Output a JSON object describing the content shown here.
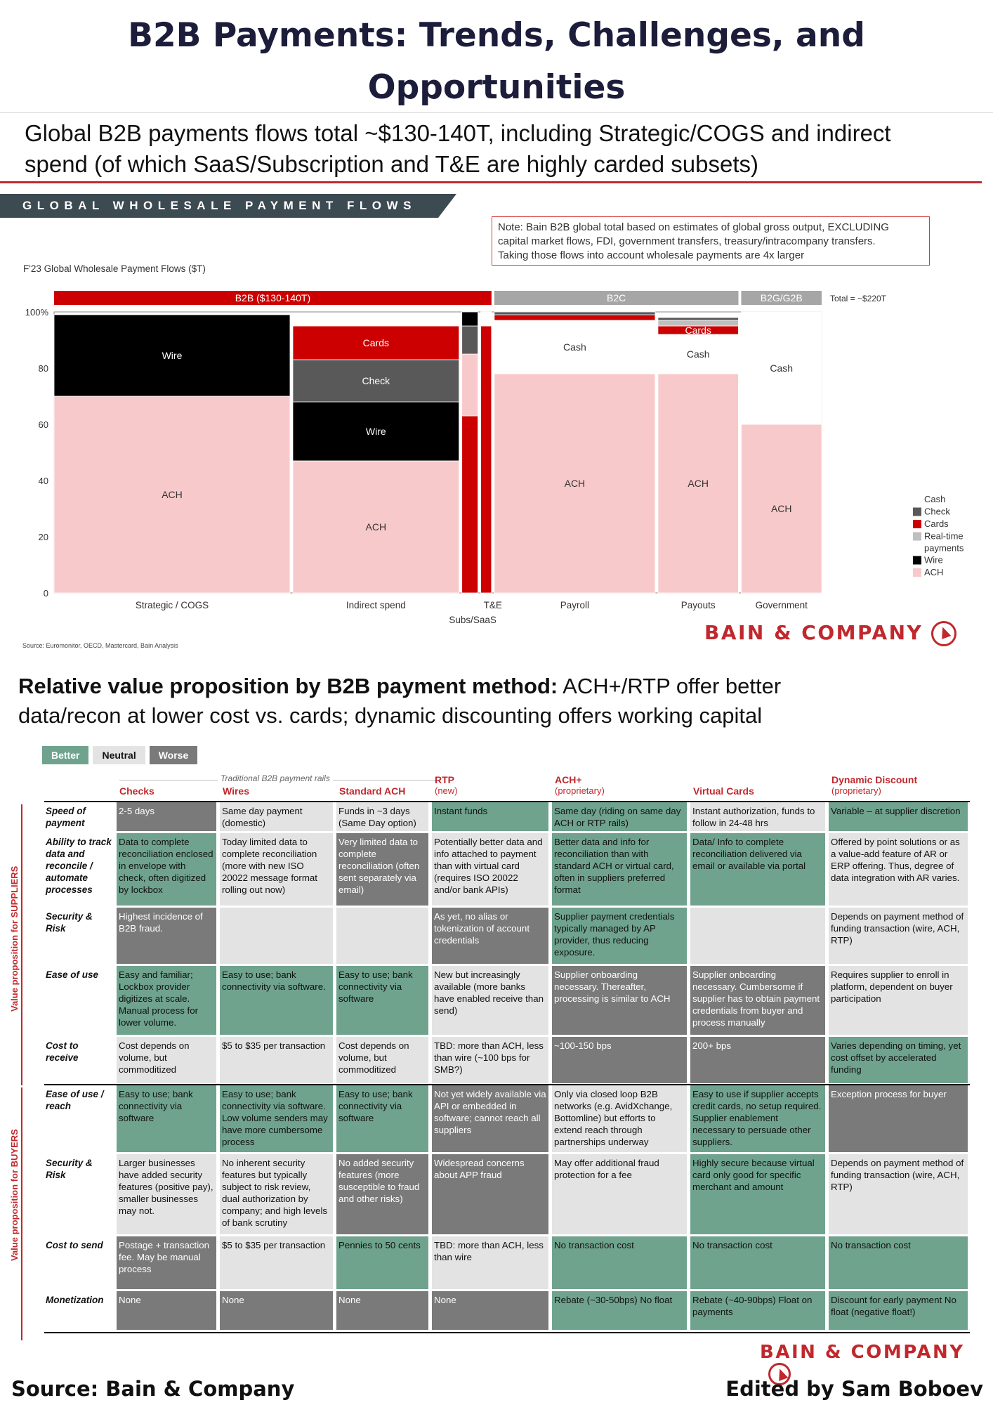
{
  "page": {
    "title_line1": "B2B Payments: Trends, Challenges, and",
    "title_line2": "Opportunities",
    "source": "Source: Bain & Company",
    "editor": "Edited by Sam Boboev",
    "brand": "BAIN & COMPANY"
  },
  "section1": {
    "headline_line1": "Global B2B payments flows total ~$130-140T, including Strategic/COGS and indirect",
    "headline_line2": "spend (of which SaaS/Subscription and T&E are highly carded subsets)",
    "banner": "GLOBAL WHOLESALE PAYMENT FLOWS",
    "note_line1": "Note: Bain B2B global total based on estimates of global gross output, EXCLUDING",
    "note_line2": "capital market flows, FDI, government transfers, treasury/intracompany transfers.",
    "note_line3": "Taking those flows into account wholesale payments are 4x larger",
    "y_label": "F'23 Global Wholesale Payment Flows ($T)",
    "source_small": "Source: Euromonitor, OECD, Mastercard, Bain Analysis"
  },
  "chart_data": {
    "type": "mekko",
    "ylabel": "F'23 Global Wholesale Payment Flows ($T)",
    "yticks": [
      "0",
      "20",
      "40",
      "60",
      "80",
      "100%"
    ],
    "ylim": [
      0,
      100
    ],
    "groups": [
      {
        "name": "B2B ($130-140T)",
        "columns": [
          "Strategic / COGS",
          "Indirect spend",
          "Subs/SaaS",
          "T&E"
        ],
        "color": "#cc0000"
      },
      {
        "name": "B2C",
        "columns": [
          "Payroll",
          "Payouts"
        ],
        "color": "#a6a6a6"
      },
      {
        "name": "B2G/G2B",
        "columns": [
          "Government"
        ],
        "color": "#a6a6a6"
      }
    ],
    "total_label": "Total = ~$220T",
    "series_colors": {
      "ACH": "#f8c9cb",
      "Wire": "#000000",
      "Real-time payments": "#bfbfbf",
      "Cards": "#cc0000",
      "Check": "#595959",
      "Cash": "#ffffff"
    },
    "legend": [
      "Cash",
      "Check",
      "Cards",
      "Real-time payments",
      "Wire",
      "ACH"
    ],
    "columns": [
      {
        "name": "Strategic / COGS",
        "width": 44,
        "segments": [
          {
            "series": "ACH",
            "value": 70,
            "label": "ACH"
          },
          {
            "series": "Wire",
            "value": 29,
            "label": "Wire"
          }
        ]
      },
      {
        "name": "Indirect spend",
        "width": 31,
        "segments": [
          {
            "series": "ACH",
            "value": 47,
            "label": "ACH"
          },
          {
            "series": "Wire",
            "value": 21,
            "label": "Wire"
          },
          {
            "series": "Check",
            "value": 15,
            "label": "Check"
          },
          {
            "series": "Cards",
            "value": 12,
            "label": "Cards"
          },
          {
            "series": "Cash",
            "value": 4,
            "label": ""
          }
        ]
      },
      {
        "name": "Subs/SaaS",
        "width": 3,
        "segments": [
          {
            "series": "Cards",
            "value": 63,
            "label": ""
          },
          {
            "series": "ACH",
            "value": 22,
            "label": ""
          },
          {
            "series": "Check",
            "value": 10,
            "label": ""
          },
          {
            "series": "Wire",
            "value": 5,
            "label": ""
          }
        ]
      },
      {
        "name": "T&E",
        "width": 2,
        "segments": [
          {
            "series": "Cards",
            "value": 95,
            "label": ""
          },
          {
            "series": "Cash",
            "value": 5,
            "label": ""
          }
        ]
      },
      {
        "name": "Payroll",
        "width": 30,
        "segments": [
          {
            "series": "ACH",
            "value": 78,
            "label": "ACH"
          },
          {
            "series": "Cash",
            "value": 19,
            "label": "Cash"
          },
          {
            "series": "Cards",
            "value": 2,
            "label": ""
          },
          {
            "series": "Check",
            "value": 1,
            "label": ""
          }
        ]
      },
      {
        "name": "Payouts",
        "width": 15,
        "segments": [
          {
            "series": "ACH",
            "value": 78,
            "label": "ACH"
          },
          {
            "series": "Cash",
            "value": 14,
            "label": "Cash"
          },
          {
            "series": "Cards",
            "value": 3,
            "label": "Cards"
          },
          {
            "series": "Real-time payments",
            "value": 2,
            "label": ""
          },
          {
            "series": "Check",
            "value": 1,
            "label": ""
          }
        ]
      },
      {
        "name": "Government",
        "width": 15,
        "segments": [
          {
            "series": "ACH",
            "value": 60,
            "label": "ACH"
          },
          {
            "series": "Cash",
            "value": 40,
            "label": "Cash"
          }
        ]
      }
    ]
  },
  "section2": {
    "headline_bold": "Relative value proposition by B2B payment method:",
    "headline_rest_line1": " ACH+/RTP offer better",
    "headline_line2": "data/recon at lower cost vs. cards; dynamic discounting offers working capital",
    "legend": {
      "better": "Better",
      "neutral": "Neutral",
      "worse": "Worse"
    },
    "traditional_label": "Traditional B2B payment rails",
    "vp_suppliers": "Value proposition for SUPPLIERS",
    "vp_buyers": "Value proposition for BUYERS",
    "columns": [
      {
        "name": "Checks",
        "sub": ""
      },
      {
        "name": "Wires",
        "sub": ""
      },
      {
        "name": "Standard ACH",
        "sub": ""
      },
      {
        "name": "RTP",
        "sub": "(new)"
      },
      {
        "name": "ACH+",
        "sub": "(proprietary)"
      },
      {
        "name": "Virtual Cards",
        "sub": ""
      },
      {
        "name": "Dynamic Discount",
        "sub": "(proprietary)"
      }
    ],
    "rows": [
      {
        "label": "Speed of payment",
        "cells": [
          {
            "t": "2-5 days",
            "s": "worse"
          },
          {
            "t": "Same day payment (domestic)",
            "s": "neutral"
          },
          {
            "t": "Funds in ~3 days (Same Day option)",
            "s": "neutral"
          },
          {
            "t": "Instant funds",
            "s": "better"
          },
          {
            "t": "Same day (riding on same day ACH or RTP rails)",
            "s": "better"
          },
          {
            "t": "Instant authorization, funds to follow in 24-48 hrs",
            "s": "neutral"
          },
          {
            "t": "Variable – at supplier discretion",
            "s": "better"
          }
        ]
      },
      {
        "label": "Ability to track data and reconcile / automate processes",
        "cells": [
          {
            "t": "Data to complete reconciliation enclosed in envelope with check, often digitized by lockbox",
            "s": "better"
          },
          {
            "t": "Today limited data to complete reconciliation (more with new ISO 20022 message format rolling out now)",
            "s": "neutral"
          },
          {
            "t": "Very limited data to complete reconciliation (often sent separately via email)",
            "s": "worse"
          },
          {
            "t": "Potentially better data and info attached to payment than with virtual card (requires ISO 20022 and/or bank APIs)",
            "s": "neutral"
          },
          {
            "t": "Better data and info for reconciliation than with standard ACH or virtual card, often in suppliers preferred format",
            "s": "better"
          },
          {
            "t": "Data/ Info to complete reconciliation delivered via email or available via portal",
            "s": "better"
          },
          {
            "t": "Offered by point solutions or as a value-add feature of AR or ERP offering. Thus, degree of data integration with AR varies.",
            "s": "neutral"
          }
        ]
      },
      {
        "label": "Security & Risk",
        "cells": [
          {
            "t": "Highest incidence of B2B fraud.",
            "s": "worse"
          },
          {
            "t": "",
            "s": "neutral"
          },
          {
            "t": "",
            "s": "neutral"
          },
          {
            "t": "As yet, no alias or tokenization of account credentials",
            "s": "worse"
          },
          {
            "t": "Supplier payment credentials typically managed by AP provider, thus reducing exposure.",
            "s": "better"
          },
          {
            "t": "",
            "s": "neutral"
          },
          {
            "t": "Depends on payment method of funding transaction (wire, ACH, RTP)",
            "s": "neutral"
          }
        ]
      },
      {
        "label": "Ease of use",
        "cells": [
          {
            "t": "Easy and familiar; Lockbox provider digitizes at scale. Manual process for lower volume.",
            "s": "better"
          },
          {
            "t": "Easy to use; bank connectivity via software.",
            "s": "better"
          },
          {
            "t": "Easy to use; bank connectivity via software",
            "s": "better"
          },
          {
            "t": "New but increasingly available (more banks have enabled receive than send)",
            "s": "neutral"
          },
          {
            "t": "Supplier onboarding necessary. Thereafter, processing is similar to ACH",
            "s": "worse"
          },
          {
            "t": "Supplier onboarding necessary. Cumbersome if supplier has to obtain payment credentials from buyer and process manually",
            "s": "worse"
          },
          {
            "t": "Requires supplier to enroll in platform, dependent on buyer participation",
            "s": "neutral"
          }
        ]
      },
      {
        "label": "Cost to receive",
        "cells": [
          {
            "t": "Cost depends on volume, but commoditized",
            "s": "neutral"
          },
          {
            "t": "$5 to $35 per transaction",
            "s": "neutral"
          },
          {
            "t": "Cost depends on volume, but commoditized",
            "s": "neutral"
          },
          {
            "t": "TBD: more than ACH, less than wire (~100 bps for SMB?)",
            "s": "neutral"
          },
          {
            "t": "~100-150 bps",
            "s": "worse"
          },
          {
            "t": "200+ bps",
            "s": "worse"
          },
          {
            "t": "Varies depending on timing, yet cost offset by accelerated funding",
            "s": "better"
          }
        ]
      },
      {
        "label": "Ease of use / reach",
        "cells": [
          {
            "t": "Easy to use; bank connectivity via software",
            "s": "better"
          },
          {
            "t": "Easy to use; bank connectivity via software. Low volume senders may have more cumbersome process",
            "s": "better"
          },
          {
            "t": "Easy to use; bank connectivity via software",
            "s": "better"
          },
          {
            "t": "Not yet widely available via API or embedded in software; cannot reach all suppliers",
            "s": "worse"
          },
          {
            "t": "Only via closed loop B2B networks (e.g. AvidXchange, Bottomline) but efforts to extend reach through partnerships underway",
            "s": "neutral"
          },
          {
            "t": "Easy to use if supplier accepts credit cards, no setup required. Supplier enablement necessary to persuade other suppliers.",
            "s": "better"
          },
          {
            "t": "Exception process for buyer",
            "s": "worse"
          }
        ]
      },
      {
        "label": "Security & Risk",
        "cells": [
          {
            "t": "Larger businesses have added security features (positive pay), smaller businesses may not.",
            "s": "neutral"
          },
          {
            "t": "No inherent security features but typically subject to risk review, dual authorization by company; and high levels of bank scrutiny",
            "s": "neutral"
          },
          {
            "t": "No added security features (more susceptible to fraud and other risks)",
            "s": "worse"
          },
          {
            "t": "Widespread concerns about APP fraud",
            "s": "worse"
          },
          {
            "t": "May offer additional fraud protection for a fee",
            "s": "neutral"
          },
          {
            "t": "Highly secure because virtual card only good for specific merchant and amount",
            "s": "better"
          },
          {
            "t": "Depends on payment method of funding transaction (wire, ACH, RTP)",
            "s": "neutral"
          }
        ]
      },
      {
        "label": "Cost to send",
        "cells": [
          {
            "t": "Postage + transaction fee. May be manual process",
            "s": "worse"
          },
          {
            "t": "$5 to $35 per transaction",
            "s": "neutral"
          },
          {
            "t": "Pennies to 50 cents",
            "s": "better"
          },
          {
            "t": "TBD: more than ACH, less than wire",
            "s": "neutral"
          },
          {
            "t": "No transaction cost",
            "s": "better"
          },
          {
            "t": "No transaction cost",
            "s": "better"
          },
          {
            "t": "No transaction cost",
            "s": "better"
          }
        ]
      },
      {
        "label": "Monetization",
        "cells": [
          {
            "t": "None",
            "s": "worse"
          },
          {
            "t": "None",
            "s": "worse"
          },
          {
            "t": "None",
            "s": "worse"
          },
          {
            "t": "None",
            "s": "worse"
          },
          {
            "t": "Rebate (~30-50bps) No float",
            "s": "better"
          },
          {
            "t": "Rebate (~40-90bps) Float on payments",
            "s": "better"
          },
          {
            "t": "Discount for early payment No float (negative float!)",
            "s": "better"
          }
        ]
      }
    ]
  }
}
